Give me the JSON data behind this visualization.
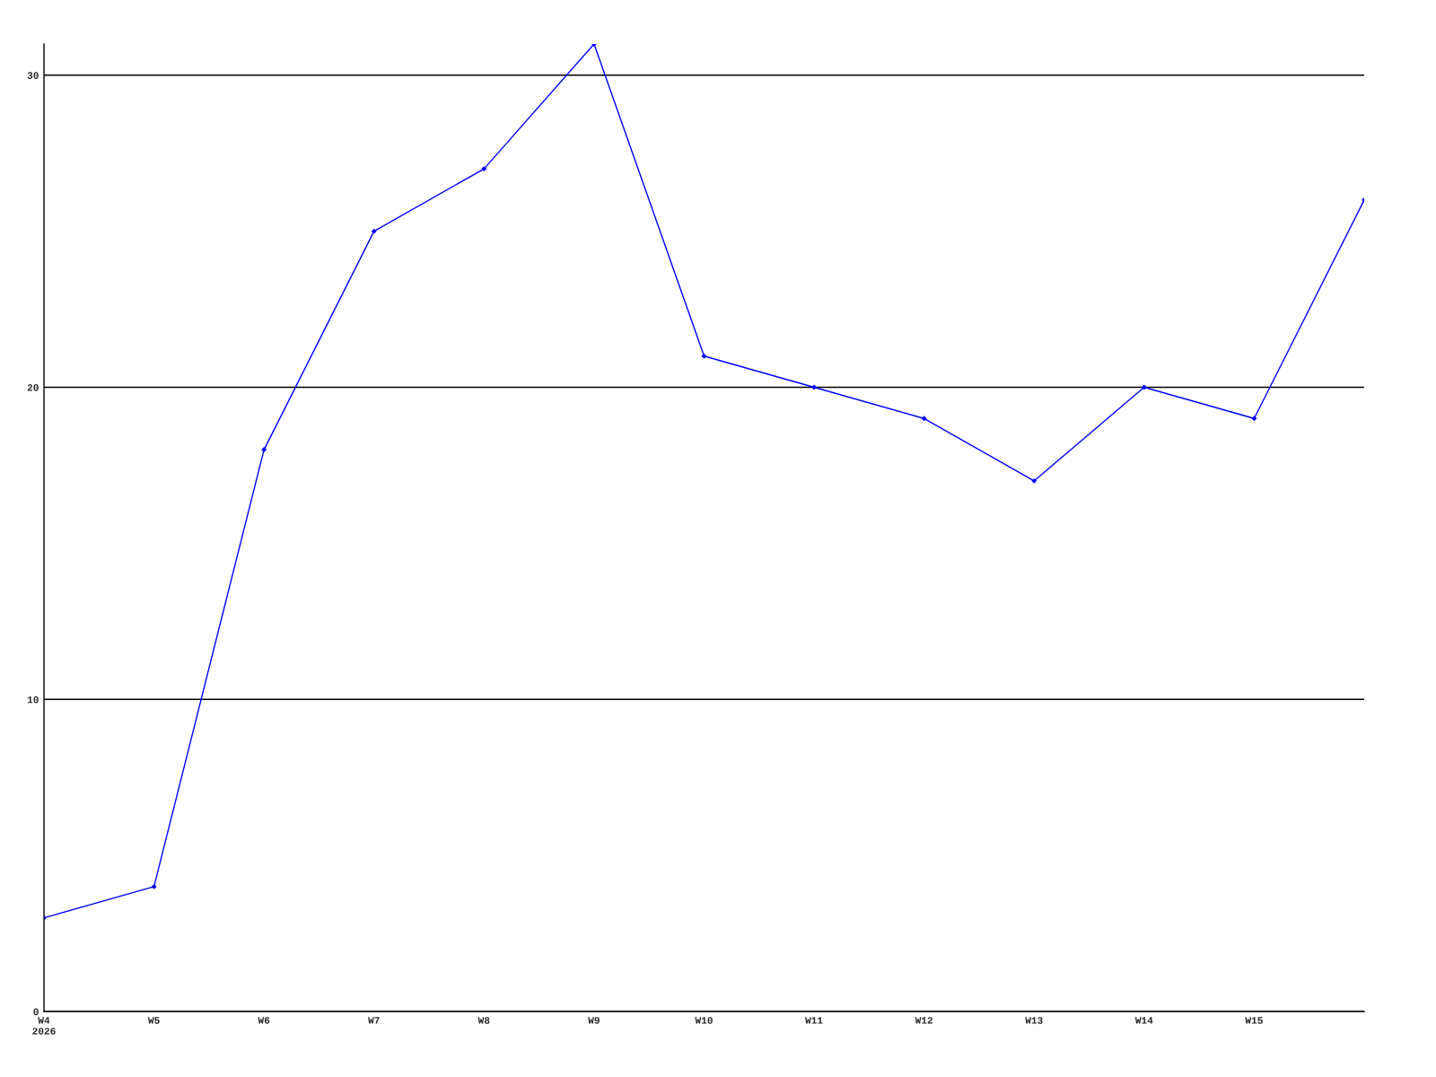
{
  "chart_data": {
    "type": "line",
    "categories": [
      "W4\n2026",
      "W5",
      "W6",
      "W7",
      "W8",
      "W9",
      "W10",
      "W11",
      "W12",
      "W13",
      "W14",
      "W15",
      null
    ],
    "series": [
      {
        "color": "#0000ff",
        "values": [
          3,
          4,
          18,
          25,
          27,
          31,
          21,
          20,
          19,
          17,
          20,
          19,
          26
        ]
      }
    ],
    "ylim": [
      0,
      31
    ],
    "yticks": [
      0,
      10,
      20,
      30
    ],
    "grid": "y",
    "marker": "diamond",
    "line_style": "solid"
  }
}
